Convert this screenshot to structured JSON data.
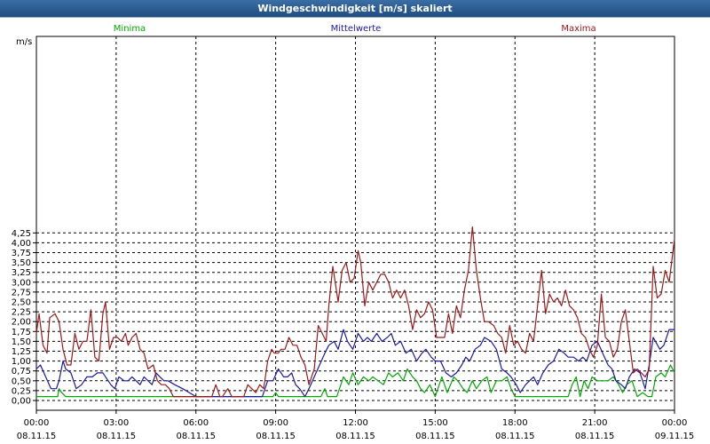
{
  "chart_data": {
    "type": "line",
    "title": "Windgeschwindigkeit [m/s] skaliert",
    "ylabel": "m/s",
    "ylim": [
      0,
      4.5
    ],
    "xlim_hours": [
      0,
      24
    ],
    "y_ticks": [
      "0,00",
      "0,25",
      "0,50",
      "0,75",
      "1,00",
      "1,25",
      "1,50",
      "1,75",
      "2,00",
      "2,25",
      "2,50",
      "2,75",
      "3,00",
      "3,25",
      "3,50",
      "3,75",
      "4,00",
      "4,25"
    ],
    "x_ticks": [
      {
        "time": "00:00",
        "date": "08.11.15"
      },
      {
        "time": "03:00",
        "date": "08.11.15"
      },
      {
        "time": "06:00",
        "date": "08.11.15"
      },
      {
        "time": "09:00",
        "date": "08.11.15"
      },
      {
        "time": "12:00",
        "date": "08.11.15"
      },
      {
        "time": "15:00",
        "date": "08.11.15"
      },
      {
        "time": "18:00",
        "date": "08.11.15"
      },
      {
        "time": "21:00",
        "date": "08.11.15"
      },
      {
        "time": "00:00",
        "date": "09.11.15"
      }
    ],
    "grid": true,
    "legend_position": "top",
    "series": [
      {
        "name": "Minima",
        "color": "#00aa00",
        "x": [
          0,
          0.8,
          0.85,
          0.95,
          1.1,
          2.0,
          4.0,
          6.0,
          7.0,
          8.5,
          8.9,
          9.0,
          9.1,
          9.3,
          10.0,
          10.7,
          10.85,
          10.95,
          11.15,
          11.3,
          11.55,
          11.75,
          11.9,
          12.1,
          12.3,
          12.5,
          12.65,
          12.85,
          13.05,
          13.25,
          13.4,
          13.6,
          13.8,
          13.95,
          14.15,
          14.3,
          14.45,
          14.6,
          14.8,
          15.0,
          15.25,
          15.45,
          15.7,
          15.85,
          16.05,
          16.2,
          16.4,
          16.55,
          16.75,
          16.95,
          17.1,
          17.3,
          17.5,
          17.7,
          17.85,
          18.0,
          18.2,
          18.4,
          18.55,
          18.7,
          19.0,
          19.5,
          20.0,
          20.15,
          20.3,
          20.45,
          20.6,
          20.75,
          20.9,
          21.1,
          21.3,
          21.5,
          21.7,
          21.9,
          22.05,
          22.2,
          22.4,
          22.6,
          22.8,
          23.0,
          23.15,
          23.3,
          23.5,
          23.65,
          23.85,
          24.0
        ],
        "y": [
          0.1,
          0.1,
          0.3,
          0.2,
          0.1,
          0.1,
          0.1,
          0.1,
          0.1,
          0.1,
          0.1,
          0.2,
          0.1,
          0.1,
          0.1,
          0.1,
          0.3,
          0.1,
          0.1,
          0.1,
          0.6,
          0.4,
          0.7,
          0.4,
          0.6,
          0.5,
          0.6,
          0.5,
          0.4,
          0.7,
          0.6,
          0.7,
          0.5,
          0.8,
          0.6,
          0.5,
          0.3,
          0.2,
          0.4,
          0.1,
          0.6,
          0.2,
          0.6,
          0.5,
          0.3,
          0.2,
          0.5,
          0.3,
          0.5,
          0.6,
          0.2,
          0.5,
          0.5,
          0.6,
          0.3,
          0.1,
          0.1,
          0.1,
          0.1,
          0.1,
          0.1,
          0.1,
          0.1,
          0.4,
          0.6,
          0.1,
          0.5,
          0.3,
          0.6,
          0.5,
          0.5,
          0.5,
          0.6,
          0.4,
          0.2,
          0.4,
          0.5,
          0.1,
          0.2,
          0.1,
          0.1,
          0.6,
          0.7,
          0.6,
          0.9,
          0.7
        ]
      },
      {
        "name": "Mittelwerte",
        "color": "#1a1aaa",
        "x": [
          0,
          0.15,
          0.35,
          0.55,
          0.75,
          0.85,
          1.0,
          1.1,
          1.3,
          1.5,
          1.7,
          1.9,
          2.1,
          2.3,
          2.5,
          2.7,
          2.8,
          2.95,
          3.1,
          3.3,
          3.45,
          3.6,
          3.75,
          3.9,
          4.05,
          4.2,
          4.35,
          4.5,
          4.65,
          4.8,
          4.95,
          5.2,
          5.5,
          6.0,
          7.0,
          8.5,
          8.7,
          8.9,
          9.1,
          9.2,
          9.3,
          9.45,
          9.6,
          9.75,
          9.9,
          10.1,
          10.25,
          10.45,
          10.65,
          10.85,
          11.0,
          11.2,
          11.35,
          11.55,
          11.7,
          11.9,
          12.1,
          12.3,
          12.45,
          12.6,
          12.8,
          13.0,
          13.2,
          13.35,
          13.5,
          13.7,
          13.9,
          14.1,
          14.3,
          14.5,
          14.65,
          14.85,
          15.0,
          15.2,
          15.4,
          15.6,
          15.8,
          16.0,
          16.15,
          16.3,
          16.5,
          16.7,
          16.85,
          17.1,
          17.3,
          17.5,
          17.7,
          17.85,
          18.05,
          18.2,
          18.4,
          18.55,
          18.7,
          18.85,
          19.05,
          19.25,
          19.45,
          19.65,
          19.85,
          20.0,
          20.2,
          20.4,
          20.55,
          20.7,
          20.9,
          21.1,
          21.3,
          21.5,
          21.65,
          21.8,
          22.0,
          22.15,
          22.3,
          22.5,
          22.7,
          22.9,
          23.05,
          23.2,
          23.45,
          23.6,
          23.8,
          24.0
        ],
        "y": [
          0.8,
          0.9,
          0.6,
          0.3,
          0.3,
          0.5,
          1.0,
          0.8,
          0.7,
          0.3,
          0.4,
          0.6,
          0.6,
          0.7,
          0.7,
          0.5,
          0.4,
          0.3,
          0.6,
          0.5,
          0.5,
          0.6,
          0.5,
          0.4,
          0.6,
          0.5,
          0.4,
          0.7,
          0.6,
          0.5,
          0.5,
          0.4,
          0.3,
          0.1,
          0.1,
          0.1,
          0.5,
          0.5,
          0.8,
          0.7,
          0.6,
          0.6,
          0.7,
          0.4,
          0.3,
          0.1,
          0.3,
          0.6,
          0.9,
          1.2,
          1.4,
          1.5,
          1.3,
          1.8,
          1.5,
          1.3,
          1.7,
          1.5,
          1.6,
          1.5,
          1.7,
          1.5,
          1.6,
          1.7,
          1.4,
          1.5,
          1.2,
          1.3,
          1.0,
          1.2,
          1.3,
          1.1,
          1.0,
          1.0,
          0.7,
          0.6,
          0.7,
          0.9,
          1.1,
          1.0,
          1.3,
          1.4,
          1.6,
          1.5,
          1.3,
          0.8,
          0.7,
          0.6,
          0.4,
          0.2,
          0.4,
          0.5,
          0.6,
          0.4,
          0.7,
          0.9,
          1.0,
          1.3,
          1.2,
          1.1,
          1.1,
          1.0,
          1.1,
          1.0,
          1.4,
          1.5,
          1.2,
          0.9,
          0.8,
          0.5,
          0.4,
          0.3,
          0.6,
          0.8,
          0.7,
          0.3,
          0.9,
          1.6,
          1.3,
          1.4,
          1.8,
          1.8
        ]
      },
      {
        "name": "Maxima",
        "color": "#a01818",
        "x": [
          0,
          0.1,
          0.25,
          0.4,
          0.5,
          0.7,
          0.85,
          1.0,
          1.15,
          1.3,
          1.45,
          1.6,
          1.75,
          1.9,
          2.05,
          2.2,
          2.35,
          2.5,
          2.6,
          2.75,
          2.9,
          3.05,
          3.2,
          3.35,
          3.45,
          3.6,
          3.75,
          3.9,
          4.05,
          4.2,
          4.4,
          4.55,
          4.7,
          4.85,
          5.0,
          5.15,
          5.3,
          5.45,
          5.6,
          5.75,
          5.9,
          6.0,
          6.15,
          6.3,
          6.45,
          6.6,
          6.75,
          6.9,
          7.0,
          7.2,
          7.35,
          7.5,
          7.65,
          7.8,
          7.95,
          8.1,
          8.25,
          8.4,
          8.55,
          8.7,
          8.85,
          8.95,
          9.1,
          9.2,
          9.35,
          9.5,
          9.65,
          9.8,
          9.95,
          10.1,
          10.25,
          10.45,
          10.6,
          10.75,
          10.9,
          11.0,
          11.15,
          11.35,
          11.5,
          11.65,
          11.8,
          11.95,
          12.1,
          12.2,
          12.35,
          12.5,
          12.65,
          12.8,
          12.95,
          13.1,
          13.25,
          13.4,
          13.55,
          13.7,
          13.85,
          14.0,
          14.15,
          14.3,
          14.45,
          14.6,
          14.75,
          14.9,
          15.05,
          15.2,
          15.35,
          15.5,
          15.65,
          15.8,
          15.95,
          16.1,
          16.25,
          16.4,
          16.55,
          16.7,
          16.85,
          17.0,
          17.2,
          17.35,
          17.5,
          17.65,
          17.8,
          17.95,
          18.1,
          18.25,
          18.4,
          18.55,
          18.7,
          18.85,
          19.0,
          19.15,
          19.3,
          19.45,
          19.6,
          19.75,
          19.9,
          20.05,
          20.2,
          20.35,
          20.5,
          20.65,
          20.8,
          20.95,
          21.1,
          21.25,
          21.4,
          21.55,
          21.7,
          21.85,
          22.0,
          22.15,
          22.3,
          22.45,
          22.6,
          22.75,
          22.9,
          23.05,
          23.2,
          23.35,
          23.5,
          23.65,
          23.8,
          24.0
        ],
        "y": [
          1.7,
          2.2,
          1.4,
          1.2,
          2.1,
          2.2,
          2.0,
          1.3,
          0.9,
          0.9,
          1.7,
          1.3,
          1.5,
          1.5,
          2.3,
          1.1,
          1.0,
          2.2,
          2.5,
          1.3,
          1.6,
          1.6,
          1.5,
          1.7,
          1.4,
          1.6,
          1.7,
          1.3,
          1.2,
          0.8,
          0.9,
          0.5,
          0.4,
          0.4,
          0.3,
          0.1,
          0.1,
          0.1,
          0.1,
          0.1,
          0.1,
          0.1,
          0.1,
          0.1,
          0.1,
          0.1,
          0.4,
          0.1,
          0.1,
          0.3,
          0.1,
          0.1,
          0.1,
          0.1,
          0.4,
          0.3,
          0.2,
          0.4,
          0.3,
          1.0,
          1.3,
          1.2,
          1.2,
          1.3,
          1.3,
          1.6,
          1.4,
          1.4,
          1.1,
          0.9,
          0.4,
          0.8,
          1.9,
          1.7,
          1.5,
          2.4,
          3.4,
          2.5,
          3.3,
          3.5,
          3.0,
          3.1,
          3.8,
          3.5,
          2.4,
          3.0,
          2.8,
          3.0,
          3.2,
          3.2,
          3.0,
          2.6,
          2.8,
          2.6,
          2.8,
          2.4,
          1.8,
          2.3,
          2.1,
          2.2,
          2.5,
          2.3,
          1.6,
          1.6,
          1.6,
          2.2,
          1.7,
          2.4,
          2.1,
          2.8,
          3.3,
          4.4,
          3.3,
          2.6,
          2.0,
          2.0,
          1.9,
          1.7,
          1.6,
          1.2,
          1.9,
          1.4,
          1.5,
          1.3,
          1.2,
          1.7,
          1.5,
          2.4,
          3.3,
          2.2,
          2.7,
          2.5,
          2.6,
          2.4,
          2.8,
          2.4,
          2.3,
          2.1,
          1.7,
          1.6,
          1.3,
          1.1,
          1.4,
          2.7,
          1.6,
          1.5,
          1.1,
          1.3,
          2.0,
          2.3,
          1.5,
          0.7,
          0.8,
          0.7,
          0.6,
          0.8,
          3.4,
          2.6,
          2.7,
          3.3,
          3.0,
          4.1
        ]
      }
    ]
  }
}
